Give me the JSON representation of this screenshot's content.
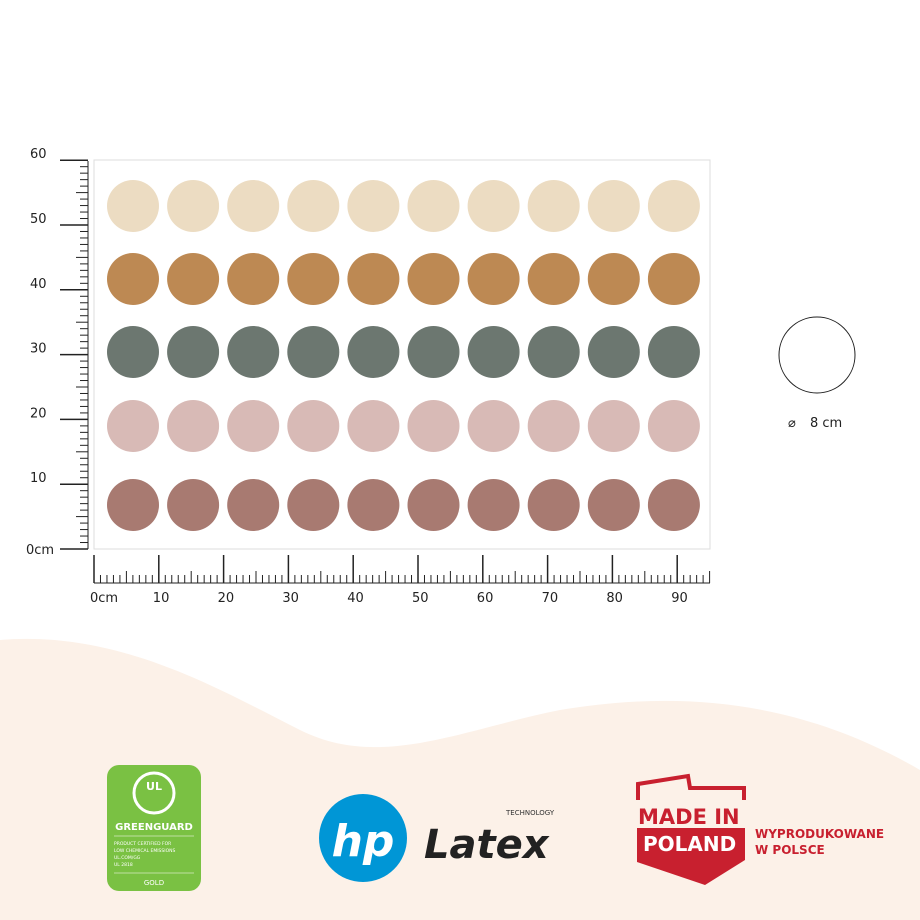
{
  "ruler": {
    "y_labels": [
      "0cm",
      "10",
      "20",
      "30",
      "40",
      "50",
      "60"
    ],
    "x_labels": [
      "0cm",
      "10",
      "20",
      "30",
      "40",
      "50",
      "60",
      "70",
      "80",
      "90"
    ]
  },
  "circles": {
    "columns": 10,
    "row_colors": [
      "#ecdcc2",
      "#bd8953",
      "#6c7770",
      "#d8bab6",
      "#a87a71"
    ]
  },
  "diameter": {
    "symbol": "⌀",
    "label": "8 cm"
  },
  "colors": {
    "wave": "#fcf1e8",
    "greenguard": "#7ac143",
    "hp": "#0096d6",
    "poland": "#c8202f"
  },
  "greenguard": {
    "brand": "GREENGUARD",
    "ul": "UL",
    "cert": [
      "PRODUCT CERTIFIED FOR",
      "LOW CHEMICAL EMISSIONS",
      "UL.COM/GG",
      "UL 2818"
    ],
    "level": "GOLD"
  },
  "hp_latex": {
    "hp": "hp",
    "latex": "Latex",
    "technology": "TECHNOLOGY"
  },
  "poland": {
    "line1": "MADE IN",
    "line2": "POLAND",
    "tagline1": "WYPRODUKOWANE",
    "tagline2": "W POLSCE"
  }
}
